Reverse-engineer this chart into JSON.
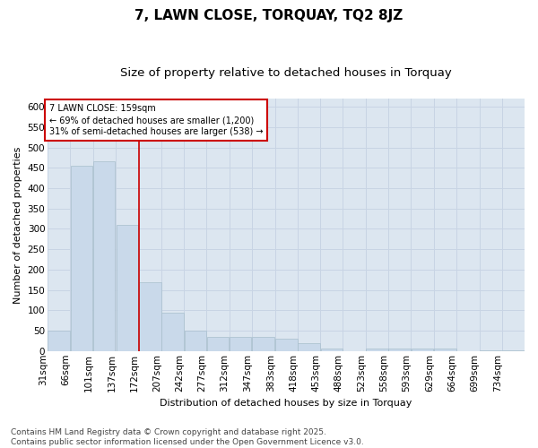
{
  "title": "7, LAWN CLOSE, TORQUAY, TQ2 8JZ",
  "subtitle": "Size of property relative to detached houses in Torquay",
  "xlabel": "Distribution of detached houses by size in Torquay",
  "ylabel": "Number of detached properties",
  "footer1": "Contains HM Land Registry data © Crown copyright and database right 2025.",
  "footer2": "Contains public sector information licensed under the Open Government Licence v3.0.",
  "annotation_title": "7 LAWN CLOSE: 159sqm",
  "annotation_line1": "← 69% of detached houses are smaller (1,200)",
  "annotation_line2": "31% of semi-detached houses are larger (538) →",
  "property_size": 159,
  "redline_x": 172,
  "bar_color": "#c9d9ea",
  "bar_edgecolor": "#a8becc",
  "redline_color": "#cc0000",
  "grid_color": "#c8d4e4",
  "background_color": "#dce6f0",
  "categories": [
    "31sqm",
    "66sqm",
    "101sqm",
    "137sqm",
    "172sqm",
    "207sqm",
    "242sqm",
    "277sqm",
    "312sqm",
    "347sqm",
    "383sqm",
    "418sqm",
    "453sqm",
    "488sqm",
    "523sqm",
    "558sqm",
    "593sqm",
    "629sqm",
    "664sqm",
    "699sqm",
    "734sqm"
  ],
  "bin_edges": [
    31,
    66,
    101,
    137,
    172,
    207,
    242,
    277,
    312,
    347,
    383,
    418,
    453,
    488,
    523,
    558,
    593,
    629,
    664,
    699,
    734
  ],
  "bin_width": 35,
  "values": [
    50,
    455,
    465,
    310,
    170,
    95,
    50,
    35,
    35,
    35,
    30,
    20,
    5,
    0,
    5,
    5,
    5,
    5,
    0,
    2,
    2
  ],
  "ylim": [
    0,
    620
  ],
  "yticks": [
    0,
    50,
    100,
    150,
    200,
    250,
    300,
    350,
    400,
    450,
    500,
    550,
    600
  ],
  "title_fontsize": 11,
  "subtitle_fontsize": 9.5,
  "axis_label_fontsize": 8,
  "tick_fontsize": 7.5,
  "footer_fontsize": 6.5,
  "annotation_fontsize": 7,
  "ylabel_fontsize": 8
}
